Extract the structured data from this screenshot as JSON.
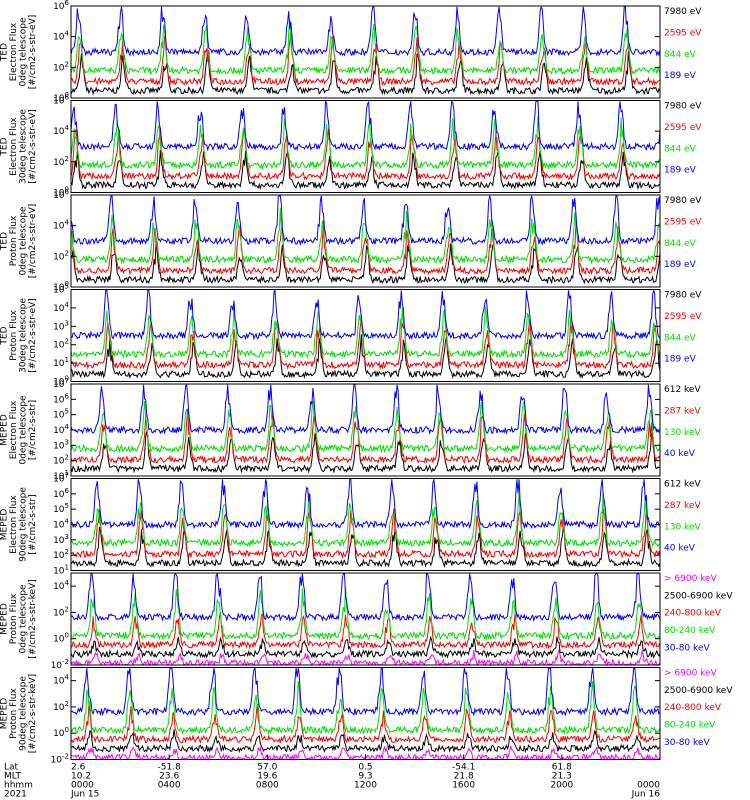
{
  "colors": {
    "black": "#000000",
    "blue": "#0000ff",
    "red": "#ff0000",
    "green": "#00e000",
    "magenta": "#ff00ff"
  },
  "chart_data": [
    {
      "type": "line",
      "title": "",
      "ylabel_lines": [
        "TED",
        "Electron Flux",
        "0deg telescope",
        "[#/cm2-s-str-eV]"
      ],
      "y_log": true,
      "ylim": [
        1,
        1000000
      ],
      "ytick_labels": [
        "10^0",
        "10^2",
        "10^4",
        "10^6"
      ],
      "series": [
        {
          "name": "7980 eV",
          "color": "#000000"
        },
        {
          "name": "2595 eV",
          "color": "#ff0000"
        },
        {
          "name": "844 eV",
          "color": "#00e000"
        },
        {
          "name": "189 eV",
          "color": "#0000ff"
        }
      ]
    },
    {
      "type": "line",
      "title": "",
      "ylabel_lines": [
        "TED",
        "Electron Flux",
        "30deg telescope",
        "[#/cm2-s-str-eV]"
      ],
      "y_log": true,
      "ylim": [
        1,
        1000000
      ],
      "ytick_labels": [
        "10^0",
        "10^2",
        "10^4",
        "10^6"
      ],
      "series": [
        {
          "name": "7980 eV",
          "color": "#000000"
        },
        {
          "name": "2595 eV",
          "color": "#ff0000"
        },
        {
          "name": "844 eV",
          "color": "#00e000"
        },
        {
          "name": "189 eV",
          "color": "#0000ff"
        }
      ]
    },
    {
      "type": "line",
      "title": "",
      "ylabel_lines": [
        "TED",
        "Proton Flux",
        "0deg telescope",
        "[#/cm2-s-str-eV]"
      ],
      "y_log": true,
      "ylim": [
        1,
        1000000
      ],
      "ytick_labels": [
        "10^0",
        "10^2",
        "10^4",
        "10^6"
      ],
      "series": [
        {
          "name": "7980 eV",
          "color": "#000000"
        },
        {
          "name": "2595 eV",
          "color": "#ff0000"
        },
        {
          "name": "844 eV",
          "color": "#00e000"
        },
        {
          "name": "189 eV",
          "color": "#0000ff"
        }
      ]
    },
    {
      "type": "line",
      "title": "",
      "ylabel_lines": [
        "TED",
        "Proton Flux",
        "30deg telescope",
        "[#/cm2-s-str-eV]"
      ],
      "y_log": true,
      "ylim": [
        1,
        100000
      ],
      "ytick_labels": [
        "10^0",
        "10^1",
        "10^2",
        "10^3",
        "10^4",
        "10^5"
      ],
      "series": [
        {
          "name": "7980 eV",
          "color": "#000000"
        },
        {
          "name": "2595 eV",
          "color": "#ff0000"
        },
        {
          "name": "844 eV",
          "color": "#00e000"
        },
        {
          "name": "189 eV",
          "color": "#0000ff"
        }
      ]
    },
    {
      "type": "line",
      "title": "",
      "ylabel_lines": [
        "MEPED",
        "Electron Flux",
        "0deg telescope",
        "[#/cm2-s-str]"
      ],
      "y_log": true,
      "ylim": [
        10,
        10000000
      ],
      "ytick_labels": [
        "10^1",
        "10^2",
        "10^3",
        "10^4",
        "10^5",
        "10^6",
        "10^7"
      ],
      "series": [
        {
          "name": "612 keV",
          "color": "#000000"
        },
        {
          "name": "287 keV",
          "color": "#ff0000"
        },
        {
          "name": "130 keV",
          "color": "#00e000"
        },
        {
          "name": "40 keV",
          "color": "#0000ff"
        }
      ]
    },
    {
      "type": "line",
      "title": "",
      "ylabel_lines": [
        "MEPED",
        "Electron Flux",
        "90deg telescope",
        "[#/cm2-s-str]"
      ],
      "y_log": true,
      "ylim": [
        10,
        10000000
      ],
      "ytick_labels": [
        "10^1",
        "10^2",
        "10^3",
        "10^4",
        "10^5",
        "10^6",
        "10^7"
      ],
      "series": [
        {
          "name": "612 keV",
          "color": "#000000"
        },
        {
          "name": "287 keV",
          "color": "#ff0000"
        },
        {
          "name": "130 keV",
          "color": "#00e000"
        },
        {
          "name": "40 keV",
          "color": "#0000ff"
        }
      ]
    },
    {
      "type": "line",
      "title": "",
      "ylabel_lines": [
        "MEPED",
        "Proton Flux",
        "0deg telescope",
        "[#/cm2-s-str-keV]"
      ],
      "y_log": true,
      "ylim": [
        0.01,
        100000
      ],
      "ytick_labels": [
        "10^-2",
        "10^0",
        "10^2",
        "10^4"
      ],
      "series": [
        {
          "name": "> 6900 keV",
          "color": "#ff00ff"
        },
        {
          "name": "2500-6900 keV",
          "color": "#000000"
        },
        {
          "name": "240-800 keV",
          "color": "#ff0000"
        },
        {
          "name": "80-240 keV",
          "color": "#00e000"
        },
        {
          "name": "30-80 keV",
          "color": "#0000ff"
        }
      ]
    },
    {
      "type": "line",
      "title": "",
      "ylabel_lines": [
        "MEPED",
        "Proton Flux",
        "90deg telescope",
        "[#/cm2-s-str-keV]"
      ],
      "y_log": true,
      "ylim": [
        0.01,
        100000
      ],
      "ytick_labels": [
        "10^-2",
        "10^0",
        "10^2",
        "10^4"
      ],
      "series": [
        {
          "name": "> 6900 keV",
          "color": "#ff00ff"
        },
        {
          "name": "2500-6900 keV",
          "color": "#000000"
        },
        {
          "name": "240-800 keV",
          "color": "#ff0000"
        },
        {
          "name": "80-240 keV",
          "color": "#00e000"
        },
        {
          "name": "30-80 keV",
          "color": "#0000ff"
        }
      ]
    }
  ],
  "x_axis": {
    "row_labels": [
      "Lat",
      "MLT",
      "hhmm",
      "2021"
    ],
    "range_hours": [
      0,
      24
    ],
    "ticks": [
      {
        "hour": 0,
        "lat": "2.6",
        "mlt": "10.2",
        "hhmm": "0000",
        "date": "Jun 15"
      },
      {
        "hour": 4,
        "lat": "-51.8",
        "mlt": "23.6",
        "hhmm": "0400",
        "date": ""
      },
      {
        "hour": 8,
        "lat": "57.0",
        "mlt": "19.6",
        "hhmm": "0800",
        "date": ""
      },
      {
        "hour": 12,
        "lat": "0.5",
        "mlt": "9.3",
        "hhmm": "1200",
        "date": ""
      },
      {
        "hour": 16,
        "lat": "-54.1",
        "mlt": "21.8",
        "hhmm": "1600",
        "date": ""
      },
      {
        "hour": 20,
        "lat": "61.8",
        "mlt": "21.3",
        "hhmm": "2000",
        "date": ""
      },
      {
        "hour": 24,
        "lat": "",
        "mlt": "",
        "hhmm": "0000",
        "date": "Jun 16"
      }
    ]
  }
}
